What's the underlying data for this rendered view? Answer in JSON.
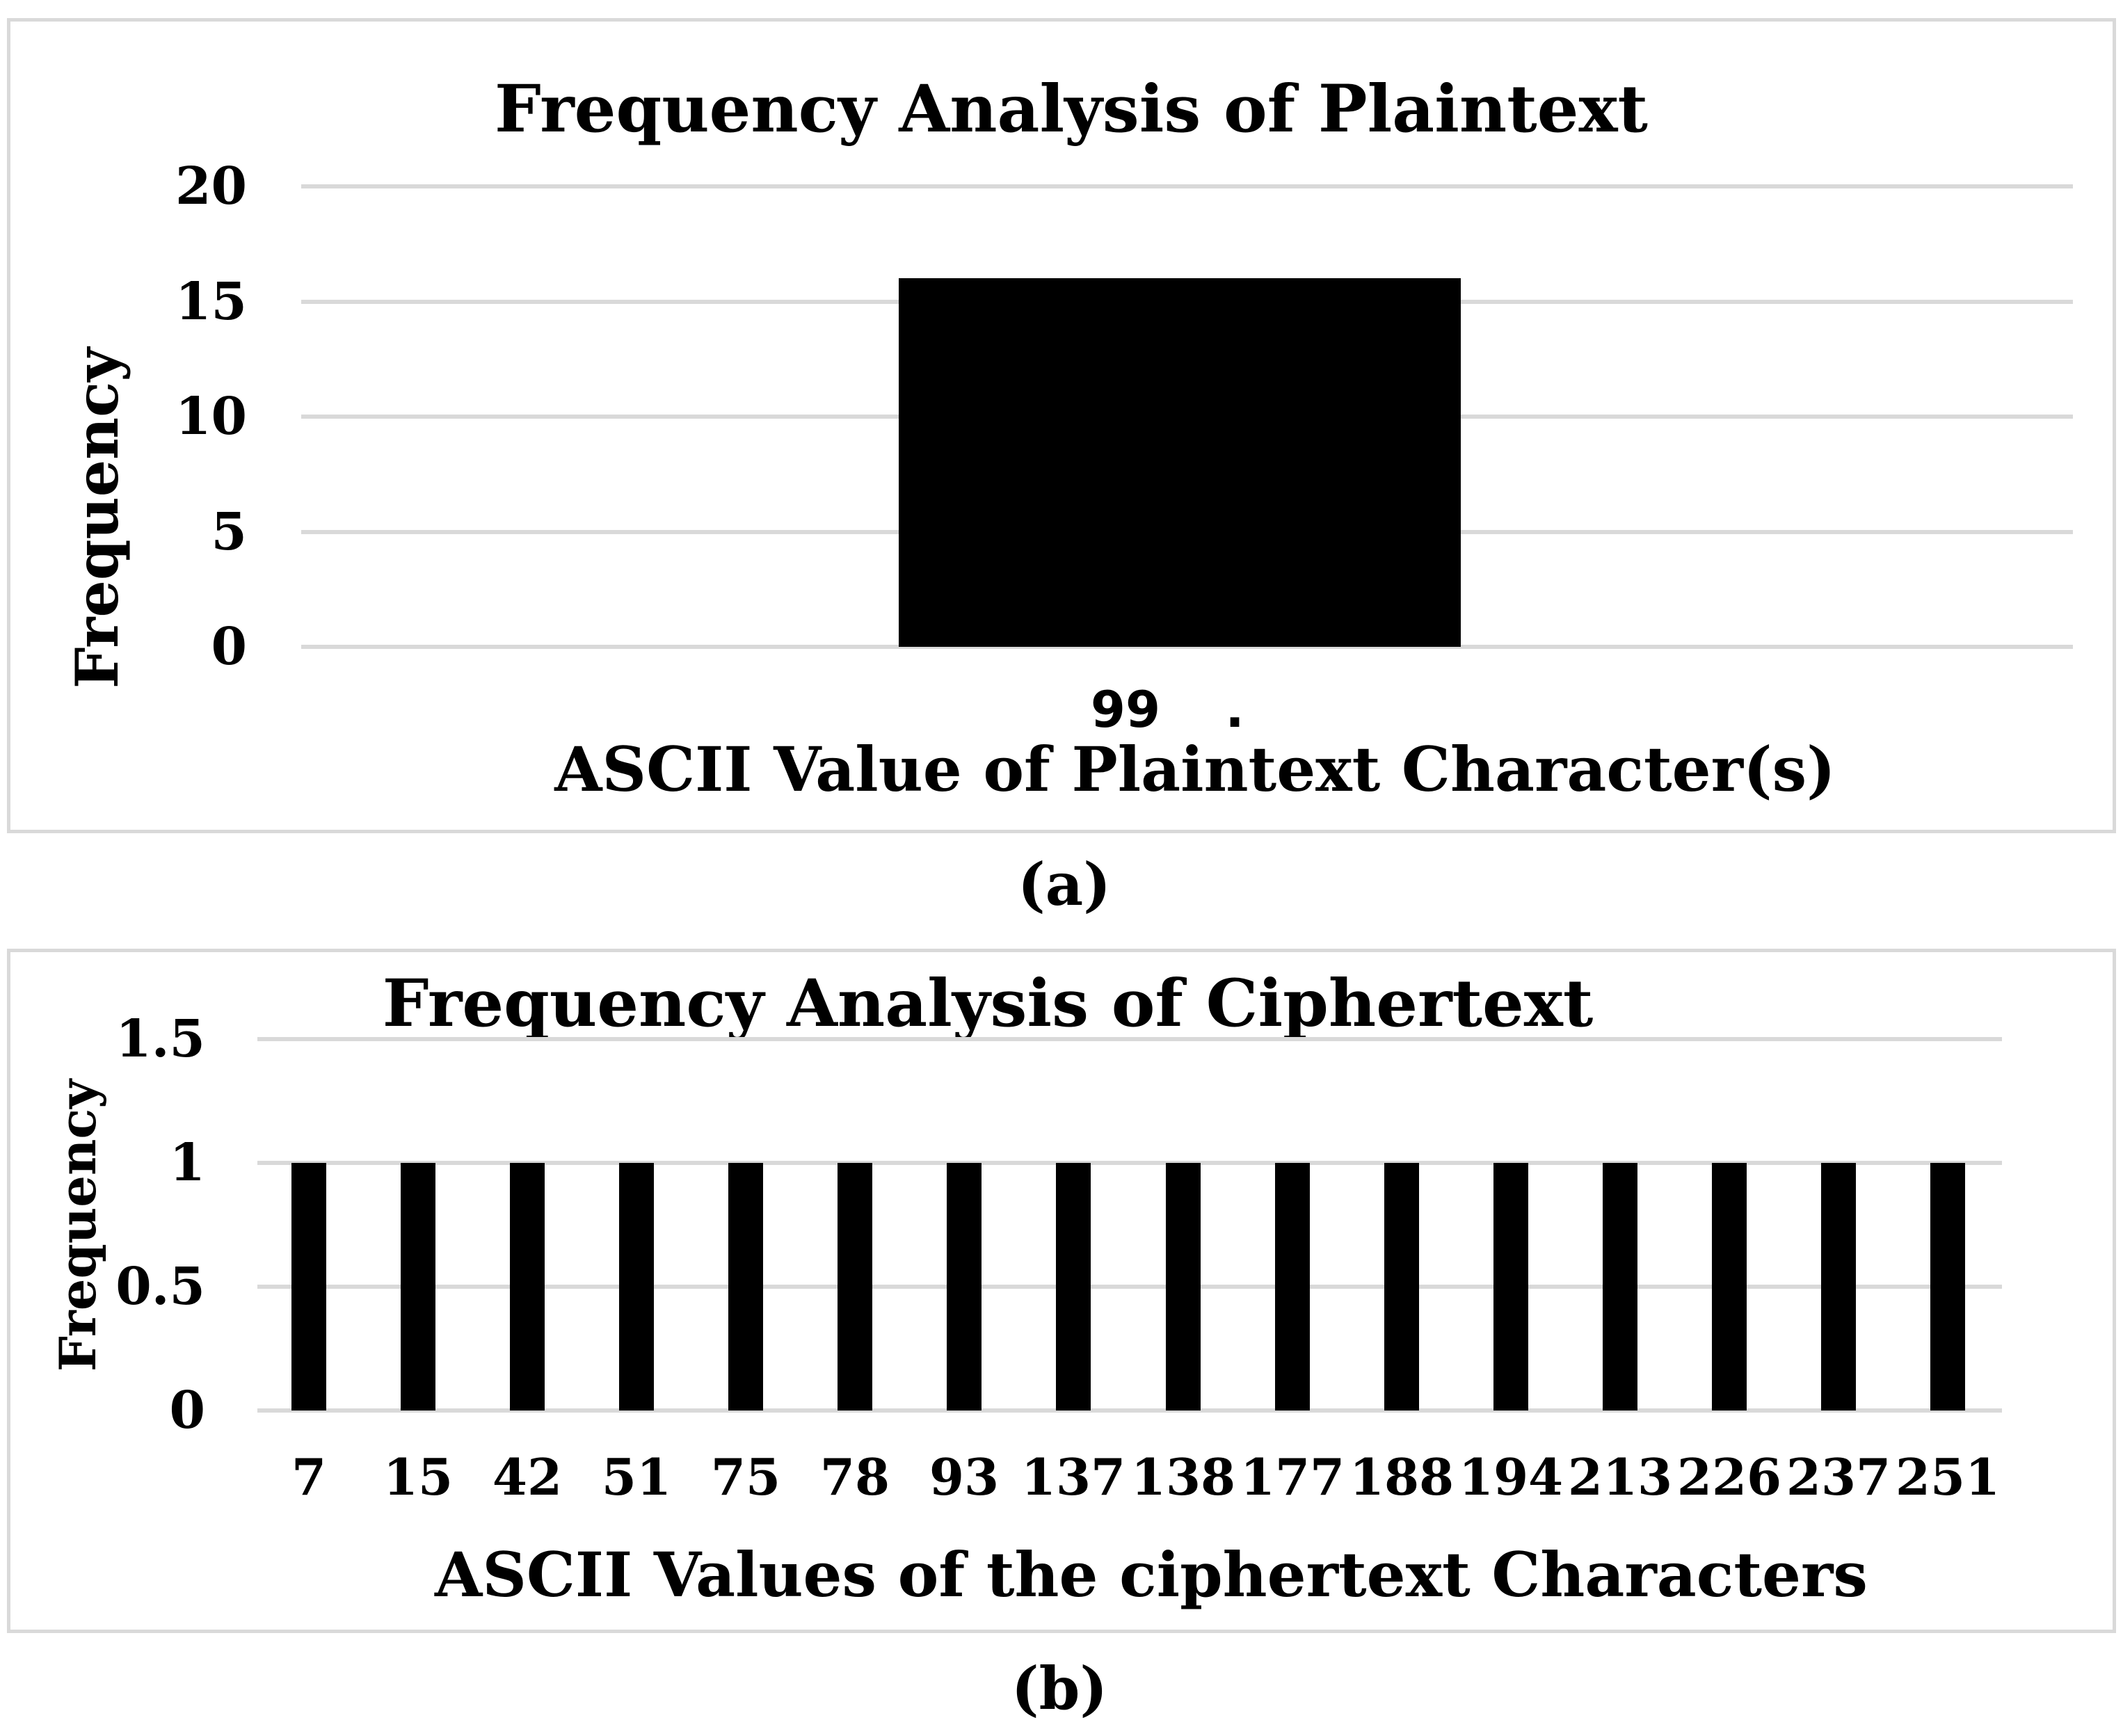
{
  "page": {
    "background": "#ffffff",
    "panel_border_color": "#d9d9d9",
    "gridline_color": "#d9d9d9",
    "bar_color": "#000000",
    "text_color": "#000000"
  },
  "figure_labels": {
    "a": "(a)",
    "b": "(b)"
  },
  "chart_data": [
    {
      "type": "bar",
      "title": "Frequency Analysis of Plaintext",
      "xlabel": "ASCII Value of Plaintext Character(s)",
      "ylabel": "Frequency",
      "categories": [
        "99"
      ],
      "values": [
        16
      ],
      "stray_label": ".",
      "ylim": [
        0,
        20
      ],
      "yticks": [
        20,
        15,
        10,
        5,
        0
      ],
      "grid": true,
      "legend": "none",
      "bar_color": "#000000"
    },
    {
      "type": "bar",
      "title": "Frequency Analysis of Ciphertext",
      "xlabel": "ASCII Values of the ciphertext Characters",
      "ylabel": "Frequency",
      "categories": [
        "7",
        "15",
        "42",
        "51",
        "75",
        "78",
        "93",
        "137",
        "138",
        "177",
        "188",
        "194",
        "213",
        "226",
        "237",
        "251"
      ],
      "values": [
        1,
        1,
        1,
        1,
        1,
        1,
        1,
        1,
        1,
        1,
        1,
        1,
        1,
        1,
        1,
        1
      ],
      "ylim": [
        0,
        1.5
      ],
      "yticks": [
        1.5,
        1,
        0.5,
        0
      ],
      "grid": true,
      "legend": "none",
      "bar_color": "#000000"
    }
  ]
}
